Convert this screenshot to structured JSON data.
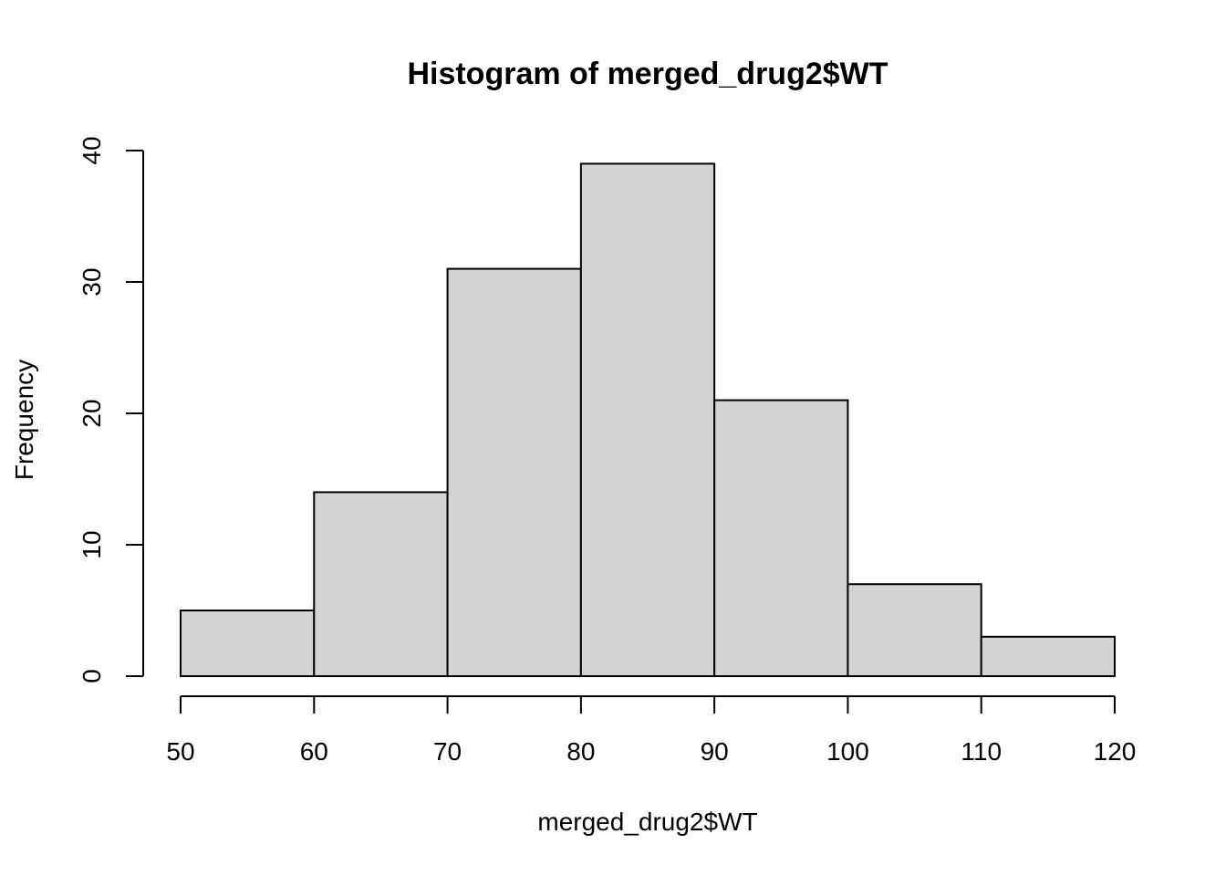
{
  "chart_data": {
    "type": "bar",
    "subtype": "histogram",
    "title": "Histogram of merged_drug2$WT",
    "xlabel": "merged_drug2$WT",
    "ylabel": "Frequency",
    "bins": [
      {
        "start": 50,
        "end": 60,
        "count": 5
      },
      {
        "start": 60,
        "end": 70,
        "count": 14
      },
      {
        "start": 70,
        "end": 80,
        "count": 31
      },
      {
        "start": 80,
        "end": 90,
        "count": 39
      },
      {
        "start": 90,
        "end": 100,
        "count": 21
      },
      {
        "start": 100,
        "end": 110,
        "count": 7
      },
      {
        "start": 110,
        "end": 120,
        "count": 3
      }
    ],
    "xlim": [
      50,
      120
    ],
    "ylim": [
      0,
      40
    ],
    "x_ticks": [
      "50",
      "60",
      "70",
      "80",
      "90",
      "100",
      "110",
      "120"
    ],
    "y_ticks": [
      "0",
      "10",
      "20",
      "30",
      "40"
    ],
    "bar_color": "#d3d3d3",
    "grid": false
  }
}
